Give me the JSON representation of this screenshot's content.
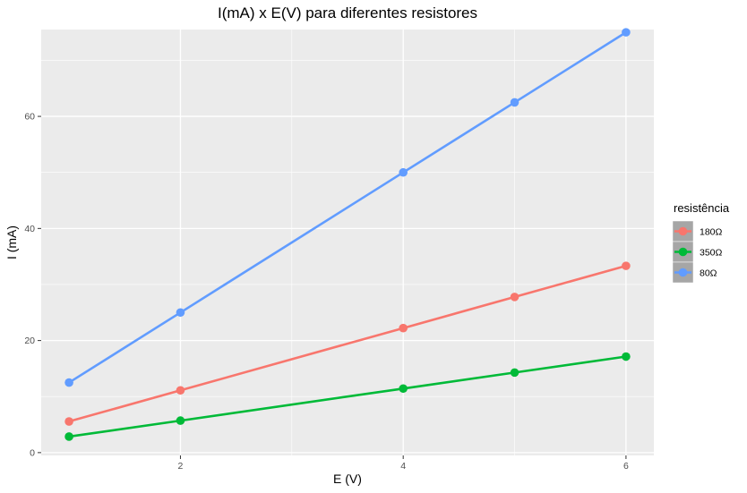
{
  "chart_data": {
    "type": "line",
    "title": "I(mA) x E(V) para diferentes resistores",
    "xlabel": "E (V)",
    "ylabel": "I (mA)",
    "xlim": [
      0.75,
      6.25
    ],
    "ylim": [
      -0.5,
      75.5
    ],
    "x_ticks": [
      2,
      4,
      6
    ],
    "y_ticks": [
      0,
      20,
      40,
      60
    ],
    "grid": true,
    "legend": {
      "title": "resistência",
      "position": "right"
    },
    "x": [
      1,
      2,
      4,
      5,
      6
    ],
    "series": [
      {
        "name": "180Ω",
        "color": "#F8766D",
        "values": [
          5.56,
          11.11,
          22.22,
          27.78,
          33.33
        ]
      },
      {
        "name": "350Ω",
        "color": "#00BA38",
        "values": [
          2.86,
          5.71,
          11.43,
          14.29,
          17.14
        ]
      },
      {
        "name": "80Ω",
        "color": "#619CFF",
        "values": [
          12.5,
          25.0,
          50.0,
          62.5,
          75.0
        ]
      }
    ]
  }
}
